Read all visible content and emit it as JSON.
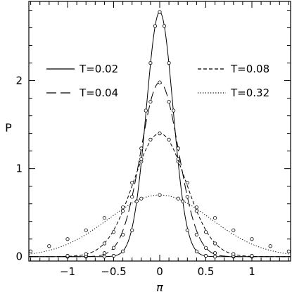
{
  "chart_data": {
    "type": "line",
    "title": "",
    "xlabel": "π",
    "ylabel": "P",
    "xlim": [
      -1.42,
      1.42
    ],
    "ylim": [
      -0.05,
      2.9
    ],
    "xticks": [
      -1,
      -0.5,
      0,
      0.5,
      1
    ],
    "xtick_labels": [
      "−1",
      "−0.5",
      "0",
      "0.5",
      "1"
    ],
    "yticks": [
      0,
      1,
      2
    ],
    "ytick_labels": [
      "0",
      "1",
      "2"
    ],
    "grid": false,
    "legend": "top",
    "series": [
      {
        "name": "T=0.02",
        "line_style": "solid",
        "peak": 2.78,
        "width": 0.145,
        "x": [
          -1.0,
          -0.8,
          -0.6,
          -0.5,
          -0.4,
          -0.3,
          -0.25,
          -0.2,
          -0.15,
          -0.1,
          -0.05,
          0,
          0.05,
          0.1,
          0.15,
          0.2,
          0.25,
          0.3,
          0.4,
          0.5,
          0.6,
          0.8,
          1.0
        ],
        "y": [
          0.0,
          0.0,
          0.0,
          0.01,
          0.06,
          0.3,
          0.63,
          1.08,
          1.66,
          2.2,
          2.62,
          2.78,
          2.62,
          2.2,
          1.66,
          1.08,
          0.63,
          0.3,
          0.06,
          0.01,
          0.0,
          0.0,
          0.0
        ]
      },
      {
        "name": "T=0.04",
        "line_style": "long-dash",
        "peak": 1.98,
        "width": 0.205,
        "x": [
          -1.0,
          -0.8,
          -0.6,
          -0.5,
          -0.4,
          -0.3,
          -0.2,
          -0.1,
          0,
          0.1,
          0.2,
          0.3,
          0.4,
          0.5,
          0.6,
          0.8,
          1.0
        ],
        "y": [
          0.0,
          0.01,
          0.04,
          0.1,
          0.25,
          0.68,
          1.23,
          1.76,
          1.98,
          1.76,
          1.23,
          0.68,
          0.25,
          0.1,
          0.04,
          0.01,
          0.0
        ]
      },
      {
        "name": "T=0.08",
        "line_style": "short-dash",
        "peak": 1.4,
        "width": 0.285,
        "x": [
          -1.0,
          -0.8,
          -0.6,
          -0.5,
          -0.4,
          -0.3,
          -0.2,
          -0.1,
          0,
          0.1,
          0.2,
          0.3,
          0.4,
          0.5,
          0.6,
          0.8,
          1.0
        ],
        "y": [
          0.01,
          0.03,
          0.15,
          0.28,
          0.52,
          0.84,
          1.11,
          1.33,
          1.4,
          1.33,
          1.11,
          0.84,
          0.52,
          0.28,
          0.15,
          0.03,
          0.01
        ]
      },
      {
        "name": "T=0.32",
        "line_style": "dotted",
        "peak": 0.7,
        "width": 0.56,
        "x": [
          -1.4,
          -1.2,
          -1.0,
          -0.8,
          -0.6,
          -0.4,
          -0.2,
          0,
          0.2,
          0.4,
          0.6,
          0.8,
          1.0,
          1.2,
          1.4
        ],
        "y": [
          0.06,
          0.12,
          0.2,
          0.3,
          0.44,
          0.56,
          0.66,
          0.7,
          0.66,
          0.56,
          0.44,
          0.3,
          0.2,
          0.12,
          0.06
        ]
      }
    ]
  }
}
